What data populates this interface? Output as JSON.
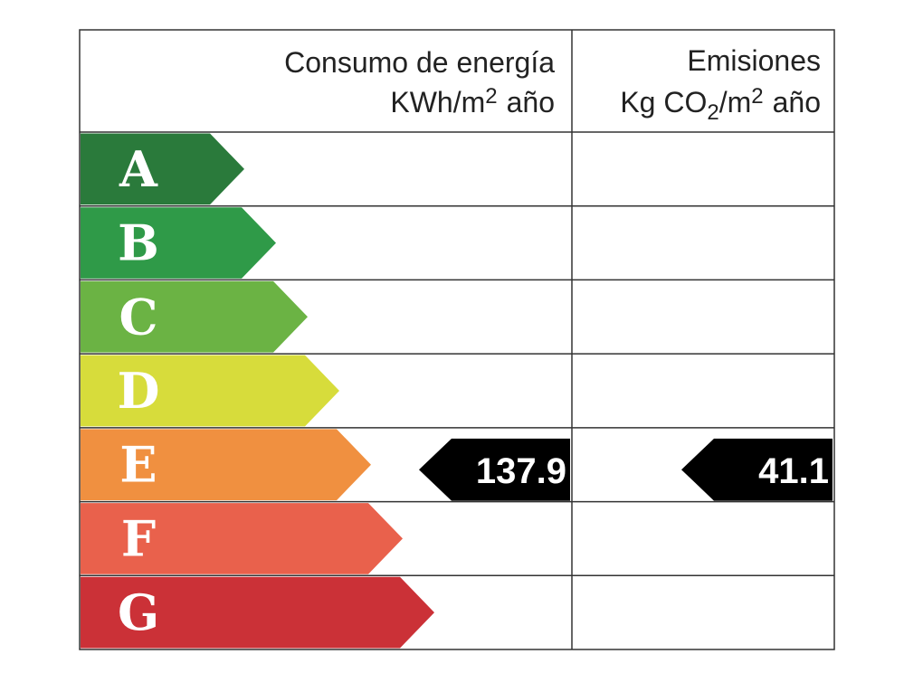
{
  "header": {
    "energy": {
      "title": "Consumo de energía",
      "unit": [
        "KWh/m",
        "2",
        "año"
      ]
    },
    "emissions": {
      "title": "Emisiones",
      "unit": [
        "Kg CO",
        "2",
        "/m",
        "2",
        "año"
      ]
    }
  },
  "ratings": [
    {
      "letter": "A",
      "color": "#2a7a3b"
    },
    {
      "letter": "B",
      "color": "#2f9a48"
    },
    {
      "letter": "C",
      "color": "#6bb344"
    },
    {
      "letter": "D",
      "color": "#d7dc3b"
    },
    {
      "letter": "E",
      "color": "#f09040"
    },
    {
      "letter": "F",
      "color": "#e9614c"
    },
    {
      "letter": "G",
      "color": "#cb3137"
    }
  ],
  "indicators": {
    "energy": {
      "rating": "E",
      "value": 137.9
    },
    "emissions": {
      "rating": "E",
      "value": 41.1
    }
  }
}
